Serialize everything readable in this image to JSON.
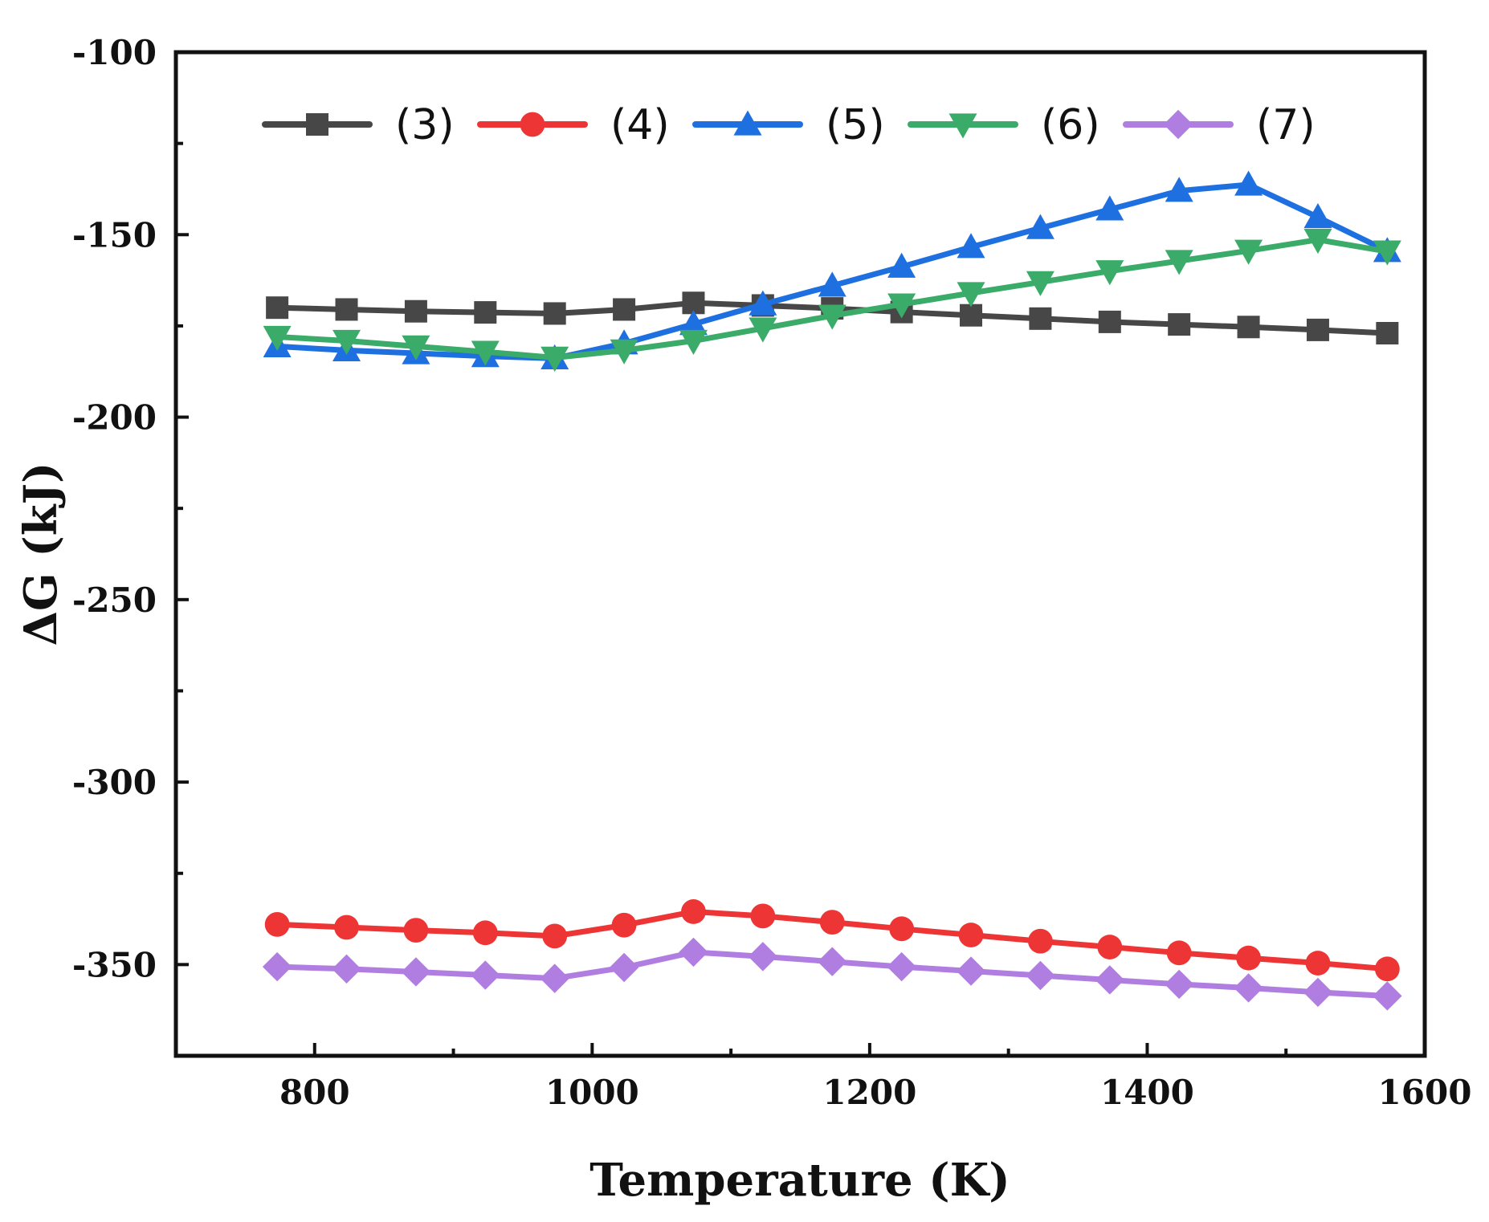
{
  "chart_data": {
    "type": "line",
    "xlabel": "Temperature (K)",
    "ylabel": "ΔG (kJ)",
    "xlim": [
      700,
      1600
    ],
    "ylim": [
      -375,
      -100
    ],
    "xticks": [
      800,
      1000,
      1200,
      1400,
      1600
    ],
    "xticks_minor": [
      900,
      1100,
      1300,
      1500
    ],
    "yticks": [
      -100,
      -150,
      -200,
      -250,
      -300,
      -350
    ],
    "yticks_minor": [
      -125,
      -175,
      -225,
      -275,
      -325,
      -375
    ],
    "grid": false,
    "legend_position": "top",
    "x": [
      773,
      823,
      873,
      923,
      973,
      1023,
      1073,
      1123,
      1173,
      1223,
      1273,
      1323,
      1373,
      1423,
      1473,
      1523,
      1573
    ],
    "series": [
      {
        "name": "(3)",
        "color": "#474747",
        "marker": "square",
        "values": [
          -170.0,
          -170.5,
          -171.0,
          -171.3,
          -171.6,
          -170.5,
          -168.7,
          -169.4,
          -170.2,
          -171.2,
          -172.1,
          -173.0,
          -173.9,
          -174.6,
          -175.3,
          -176.1,
          -177.0
        ]
      },
      {
        "name": "(4)",
        "color": "#ee3535",
        "marker": "circle",
        "values": [
          -339.0,
          -339.8,
          -340.6,
          -341.3,
          -342.2,
          -339.2,
          -335.5,
          -336.7,
          -338.4,
          -340.2,
          -341.9,
          -343.6,
          -345.2,
          -346.8,
          -348.2,
          -349.6,
          -351.2
        ]
      },
      {
        "name": "(5)",
        "color": "#1e6fe0",
        "marker": "triangle-up",
        "values": [
          -180.6,
          -181.7,
          -182.5,
          -183.3,
          -183.9,
          -179.8,
          -174.5,
          -169.1,
          -164.0,
          -158.8,
          -153.4,
          -148.2,
          -143.1,
          -138.0,
          -136.3,
          -145.2,
          -154.5
        ]
      },
      {
        "name": "(6)",
        "color": "#3aab68",
        "marker": "triangle-down",
        "values": [
          -178.0,
          -179.1,
          -180.6,
          -182.1,
          -183.7,
          -181.7,
          -179.1,
          -175.7,
          -172.2,
          -169.1,
          -166.0,
          -163.0,
          -160.0,
          -157.2,
          -154.4,
          -151.4,
          -154.6
        ]
      },
      {
        "name": "(7)",
        "color": "#b07ee0",
        "marker": "diamond",
        "values": [
          -350.6,
          -351.2,
          -352.0,
          -352.9,
          -353.8,
          -350.8,
          -346.6,
          -347.8,
          -349.2,
          -350.6,
          -351.8,
          -353.0,
          -354.2,
          -355.4,
          -356.4,
          -357.6,
          -358.6
        ]
      }
    ]
  }
}
